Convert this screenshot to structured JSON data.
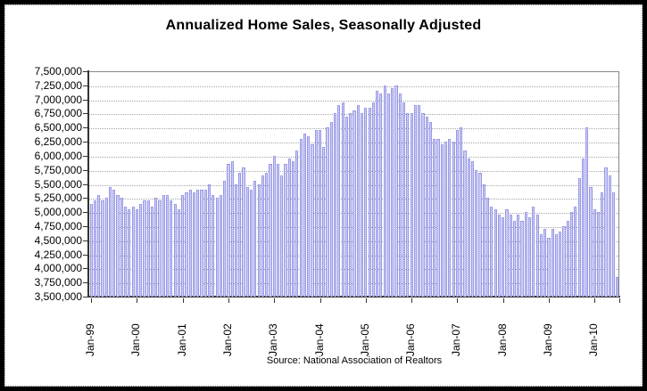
{
  "title": "Annualized Home Sales, Seasonally Adjusted",
  "source_note": "Source: National Association of Realtors",
  "colors": {
    "bar_fill_light": "#e9e9fb",
    "bar_fill_dark": "#b2b2ee",
    "bar_edge": "#9898e6",
    "gridline": "#a6a6a6",
    "axis": "#333333",
    "frame": "#000000",
    "background": "#ffffff"
  },
  "chart_data": {
    "type": "bar",
    "title": "Annualized Home Sales, Seasonally Adjusted",
    "xlabel": "",
    "ylabel": "",
    "unit": "annualized home sales (units per year, seasonally adjusted)",
    "ylim": [
      3500000,
      7500000
    ],
    "y_tick_step": 250000,
    "y_tick_labels": [
      "7,500,000",
      "7,250,000",
      "7,000,000",
      "6,750,000",
      "6,500,000",
      "6,250,000",
      "6,000,000",
      "5,750,000",
      "5,500,000",
      "5,250,000",
      "5,000,000",
      "4,750,000",
      "4,500,000",
      "4,250,000",
      "4,000,000",
      "3,750,000",
      "3,500,000"
    ],
    "x_tick_labels": [
      "Jan-99",
      "Jan-00",
      "Jan-01",
      "Jan-02",
      "Jan-03",
      "Jan-04",
      "Jan-05",
      "Jan-06",
      "Jan-07",
      "Jan-08",
      "Jan-09",
      "Jan-10"
    ],
    "start_month": "Jan-99",
    "end_month": "Jul-10",
    "grid": "horizontal-dotted",
    "legend": "none",
    "values": [
      5150000,
      5200000,
      5300000,
      5200000,
      5250000,
      5450000,
      5400000,
      5300000,
      5250000,
      5100000,
      5050000,
      5100000,
      5050000,
      5150000,
      5200000,
      5200000,
      5100000,
      5250000,
      5200000,
      5300000,
      5300000,
      5200000,
      5150000,
      5050000,
      5300000,
      5350000,
      5400000,
      5350000,
      5400000,
      5400000,
      5400000,
      5500000,
      5300000,
      5250000,
      5300000,
      5550000,
      5850000,
      5900000,
      5500000,
      5700000,
      5800000,
      5450000,
      5400000,
      5550000,
      5500000,
      5650000,
      5700000,
      5850000,
      6000000,
      5850000,
      5650000,
      5850000,
      5950000,
      5900000,
      6100000,
      6300000,
      6400000,
      6350000,
      6200000,
      6450000,
      6450000,
      6150000,
      6500000,
      6600000,
      6750000,
      6900000,
      6950000,
      6700000,
      6750000,
      6800000,
      6900000,
      6750000,
      6850000,
      6850000,
      6950000,
      7150000,
      7100000,
      7250000,
      7100000,
      7200000,
      7250000,
      7100000,
      6950000,
      6750000,
      6750000,
      6900000,
      6900000,
      6750000,
      6700000,
      6600000,
      6300000,
      6300000,
      6200000,
      6250000,
      6300000,
      6250000,
      6450000,
      6500000,
      6100000,
      5950000,
      5900000,
      5750000,
      5700000,
      5500000,
      5250000,
      5100000,
      5050000,
      4950000,
      4900000,
      5050000,
      4950000,
      4850000,
      4950000,
      4850000,
      5000000,
      4900000,
      5100000,
      4950000,
      4600000,
      4700000,
      4550000,
      4700000,
      4600000,
      4650000,
      4750000,
      4850000,
      5000000,
      5100000,
      5600000,
      5950000,
      6500000,
      5450000,
      5050000,
      5000000,
      5350000,
      5800000,
      5650000,
      5350000,
      3850000
    ]
  }
}
